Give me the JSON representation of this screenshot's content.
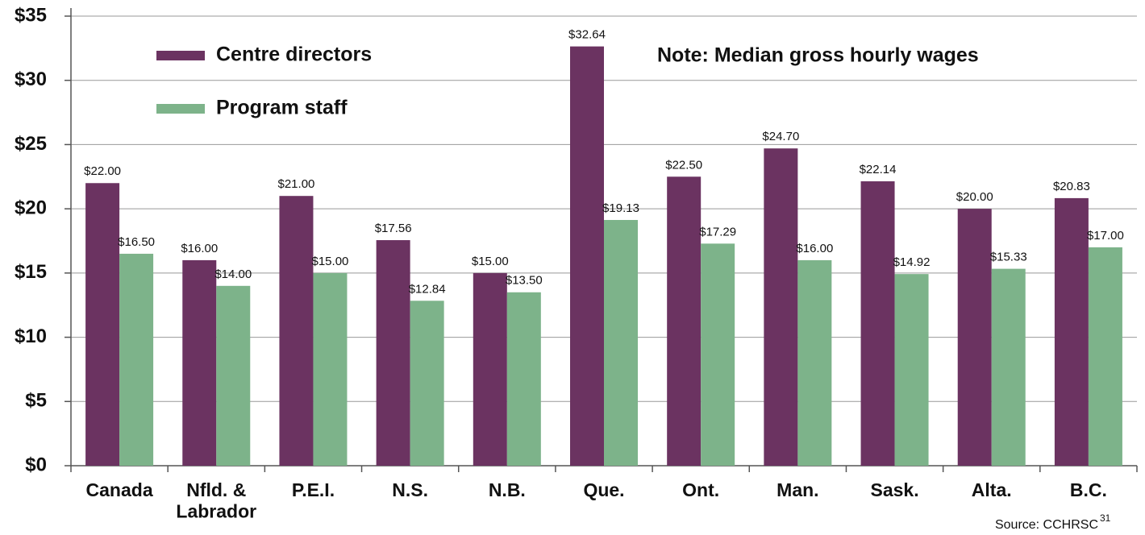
{
  "chart_data": {
    "type": "bar",
    "note": "Note: Median gross hourly wages",
    "source": "Source: CCHRSC",
    "source_ref": "31",
    "categories": [
      "Canada",
      "Nfld. &\nLabrador",
      "P.E.I.",
      "N.S.",
      "N.B.",
      "Que.",
      "Ont.",
      "Man.",
      "Sask.",
      "Alta.",
      "B.C."
    ],
    "series": [
      {
        "name": "Centre directors",
        "color": "#6b3361",
        "values": [
          22.0,
          16.0,
          21.0,
          17.56,
          15.0,
          32.64,
          22.5,
          24.7,
          22.14,
          20.0,
          20.83
        ],
        "value_labels": [
          "$22.00",
          "$16.00",
          "$21.00",
          "$17.56",
          "$15.00",
          "$32.64",
          "$22.50",
          "$24.70",
          "$22.14",
          "$20.00",
          "$20.83"
        ]
      },
      {
        "name": "Program staff",
        "color": "#7db38a",
        "values": [
          16.5,
          14.0,
          15.0,
          12.84,
          13.5,
          19.13,
          17.29,
          16.0,
          14.92,
          15.33,
          17.0
        ],
        "value_labels": [
          "$16.50",
          "$14.00",
          "$15.00",
          "$12.84",
          "$13.50",
          "$19.13",
          "$17.29",
          "$16.00",
          "$14.92",
          "$15.33",
          "$17.00"
        ]
      }
    ],
    "ylim": [
      0,
      35
    ],
    "yticks": [
      {
        "value": 0,
        "label": "$0"
      },
      {
        "value": 5,
        "label": "$5"
      },
      {
        "value": 10,
        "label": "$10"
      },
      {
        "value": 15,
        "label": "$15"
      },
      {
        "value": 20,
        "label": "$20"
      },
      {
        "value": 25,
        "label": "$25"
      },
      {
        "value": 30,
        "label": "$30"
      },
      {
        "value": 35,
        "label": "$35"
      }
    ],
    "grid": true
  }
}
